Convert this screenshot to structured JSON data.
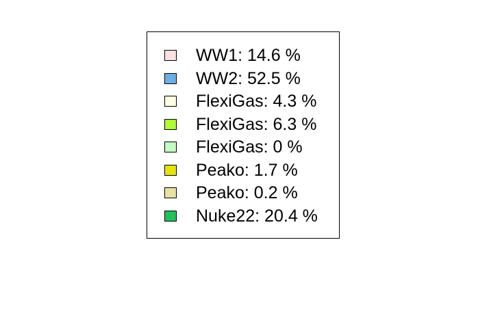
{
  "chart_data": {
    "type": "pie",
    "title": "",
    "legend": {
      "placement": "center",
      "entries": [
        {
          "label": "WW1: 14.6 %",
          "name": "WW1",
          "value": 14.6,
          "color": "#ffe0e0"
        },
        {
          "label": "WW2: 52.5 %",
          "name": "WW2",
          "value": 52.5,
          "color": "#6ab0e8"
        },
        {
          "label": "FlexiGas: 4.3 %",
          "name": "FlexiGas",
          "value": 4.3,
          "color": "#ffffe0"
        },
        {
          "label": "FlexiGas: 6.3 %",
          "name": "FlexiGas",
          "value": 6.3,
          "color": "#adff2f"
        },
        {
          "label": "FlexiGas: 0 %",
          "name": "FlexiGas",
          "value": 0,
          "color": "#c1ffc1"
        },
        {
          "label": "Peako: 1.7 %",
          "name": "Peako",
          "value": 1.7,
          "color": "#e5e500"
        },
        {
          "label": "Peako: 0.2 %",
          "name": "Peako",
          "value": 0.2,
          "color": "#e8e2a0"
        },
        {
          "label": "Nuke22: 20.4 %",
          "name": "Nuke22",
          "value": 20.4,
          "color": "#1ec45a"
        }
      ]
    },
    "categories": [
      "WW1",
      "WW2",
      "FlexiGas",
      "FlexiGas",
      "FlexiGas",
      "Peako",
      "Peako",
      "Nuke22"
    ],
    "values": [
      14.6,
      52.5,
      4.3,
      6.3,
      0,
      1.7,
      0.2,
      20.4
    ],
    "unit": "%"
  }
}
